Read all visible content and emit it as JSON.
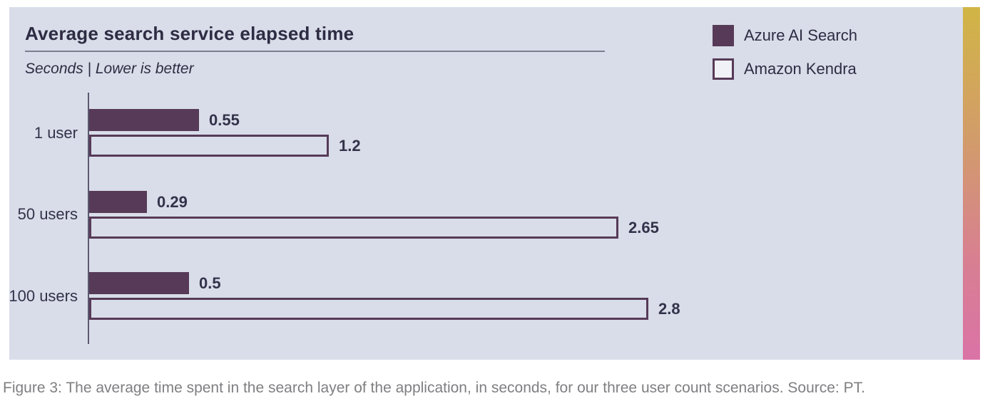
{
  "chart_data": {
    "type": "bar",
    "orientation": "horizontal",
    "title": "Average search service elapsed time",
    "subtitle": "Seconds  |  Lower is better",
    "unit": "seconds",
    "note": "lower is better",
    "categories": [
      "1 user",
      "50 users",
      "100 users"
    ],
    "series": [
      {
        "name": "Azure AI Search",
        "style": "filled",
        "values": [
          0.55,
          0.29,
          0.5
        ]
      },
      {
        "name": "Amazon Kendra",
        "style": "outlined",
        "values": [
          1.2,
          2.65,
          2.8
        ]
      }
    ],
    "xlim": [
      0,
      3.0
    ],
    "grid": false,
    "legend_position": "top-right"
  },
  "caption": "Figure 3: The average time spent in the search layer of the application, in seconds, for our three user count scenarios. Source: PT.",
  "colors": {
    "panel_background": "#d8dde9",
    "bar_fill": "#573a57",
    "bar_outline": "#573a57",
    "text_dark": "#2e2c43",
    "value_text": "#33324a",
    "axis": "#5b5970",
    "caption_text": "#7f7f82",
    "gradient_top": "#d1b545",
    "gradient_bottom": "#da73a6"
  }
}
